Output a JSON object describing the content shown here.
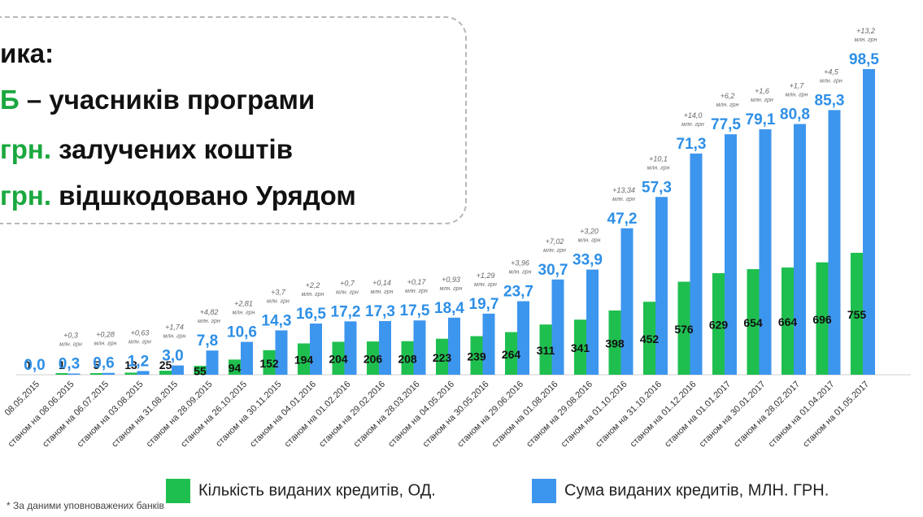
{
  "info": {
    "line1": "ика:",
    "line2_accent": "Б",
    "line2_text": " – учасників програми",
    "line3_accent": "грн.",
    "line3_text": " залучених коштів",
    "line4_accent": "грн.",
    "line4_text": " відшкодовано Урядом"
  },
  "legend": {
    "count_label": "Кількість виданих кредитів, ОД.",
    "sum_label": "Сума виданих кредитів, МЛН. ГРН."
  },
  "footnote": "* За даними уповноважених банків",
  "colors": {
    "count": "#1fbf4f",
    "sum": "#3d96ee",
    "accent_text": "#1aa83f",
    "sum_label": "#2e8fe6"
  },
  "chart_data": {
    "type": "bar",
    "categories": [
      "08.05.2015",
      "станом на 08.06.2015",
      "станом на 06.07.2015",
      "станом на 03.08.2015",
      "станом на 31.08.2015",
      "станом на 28.09.2015",
      "станом на 26.10.2015",
      "станом на 30.11.2015",
      "станом на 04.01.2016",
      "станом на 01.02.2016",
      "станом на 29.02.2016",
      "станом на 28.03.2016",
      "станом на 04.05.2016",
      "станом на 30.05.2016",
      "станом на 29.06.2016",
      "станом на 01.08.2016",
      "станом на 29.08.2016",
      "станом на 01.10.2016",
      "станом на 31.10.2016",
      "станом на 01.12.2016",
      "станом на 01.01.2017",
      "станом на 30.01.2017",
      "станом на 28.02.2017",
      "станом на 01.04.2017",
      "станом на 01.05.2017"
    ],
    "series": [
      {
        "name": "Кількість виданих кредитів, ОД.",
        "values": [
          0,
          1,
          5,
          13,
          25,
          55,
          94,
          152,
          194,
          204,
          206,
          208,
          223,
          239,
          264,
          311,
          341,
          398,
          452,
          576,
          629,
          654,
          664,
          696,
          755
        ],
        "labels": [
          "0",
          "1",
          "5",
          "13",
          "25",
          "55",
          "94",
          "152",
          "194",
          "204",
          "206",
          "208",
          "223",
          "239",
          "264",
          "311",
          "341",
          "398",
          "452",
          "576",
          "629",
          "654",
          "664",
          "696",
          "755"
        ]
      },
      {
        "name": "Сума виданих кредитів, МЛН. ГРН.",
        "values": [
          0.0,
          0.3,
          0.6,
          1.2,
          3.0,
          7.8,
          10.6,
          14.3,
          16.5,
          17.2,
          17.3,
          17.5,
          18.4,
          19.7,
          23.7,
          30.7,
          33.9,
          47.2,
          57.3,
          71.3,
          77.5,
          79.1,
          80.8,
          85.3,
          98.5
        ],
        "labels": [
          "0,0",
          "0,3",
          "0,6",
          "1,2",
          "3,0",
          "7,8",
          "10,6",
          "14,3",
          "16,5",
          "17,2",
          "17,3",
          "17,5",
          "18,4",
          "19,7",
          "23,7",
          "30,7",
          "33,9",
          "47,2",
          "57,3",
          "71,3",
          "77,5",
          "79,1",
          "80,8",
          "85,3",
          "98,5"
        ]
      }
    ],
    "increments": [
      "",
      "+0,3",
      "+0,28",
      "+0,63",
      "+1,74",
      "+4,82",
      "+2,81",
      "+3,7",
      "+2,2",
      "+0,7",
      "+0,14",
      "+0,17",
      "+0,93",
      "+1,29",
      "+3,96",
      "+7,02",
      "+3,20",
      "+13,34",
      "+10,1",
      "+14,0",
      "+6,2",
      "+1,6",
      "+1,7",
      "+4,5",
      "+13,2"
    ],
    "increment_unit": "млн. грн"
  }
}
